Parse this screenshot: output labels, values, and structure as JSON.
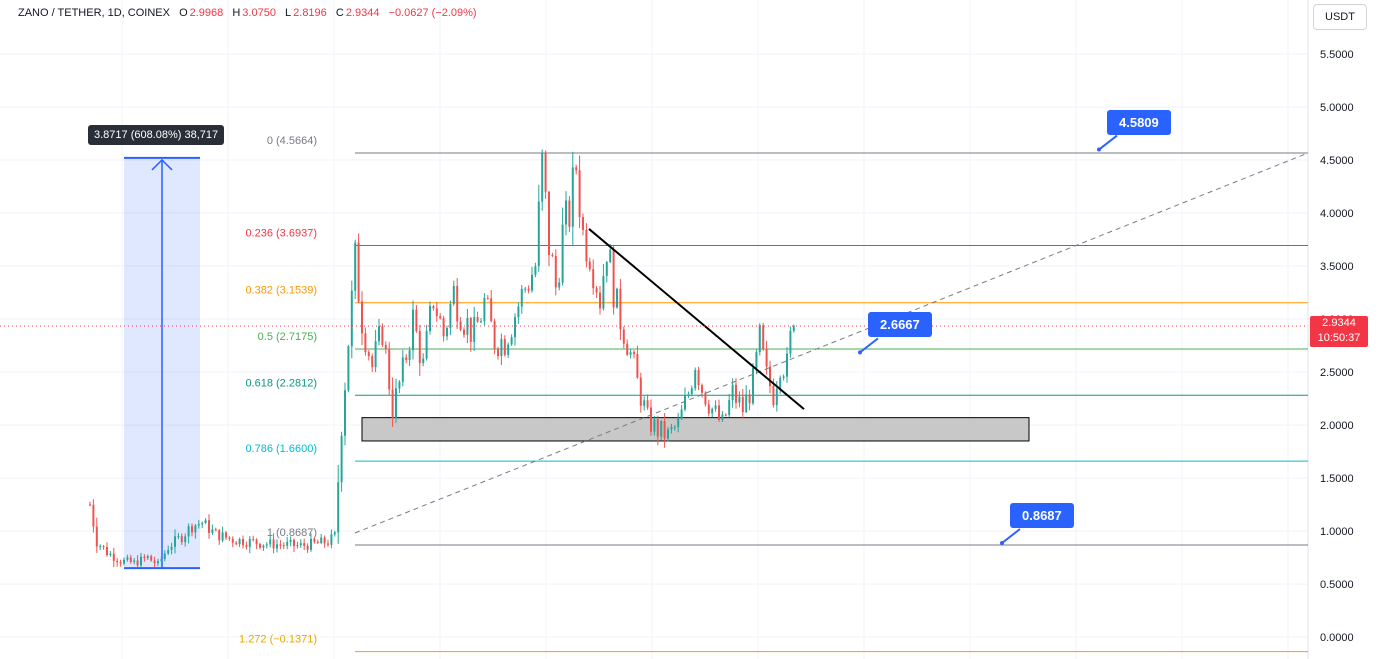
{
  "header": {
    "symbol": "ZANO / TETHER, 1D, COINEX",
    "open_label": "O",
    "open": "2.9968",
    "high_label": "H",
    "high": "3.0750",
    "low_label": "L",
    "low": "2.8196",
    "close_label": "C",
    "close": "2.9344",
    "change": "−0.0627 (−2.09%)"
  },
  "unit_button": "USDT",
  "price_tag": {
    "price": "2.9344",
    "countdown": "10:50:37"
  },
  "colors": {
    "up": "#26a69a",
    "down": "#ef5350",
    "bar": "#131722",
    "accent": "#2962ff",
    "fib_0": "#787b86",
    "fib_236": "#f23645",
    "fib_382": "#ff9800",
    "fib_5": "#4caf50",
    "fib_618": "#089981",
    "fib_786": "#00bcd4",
    "fib_1": "#787b86",
    "fib_1272": "#e5a700"
  },
  "measure": {
    "label": "3.8717 (608.08%) 38,717",
    "from": 0.65,
    "to": 4.52
  },
  "callouts": [
    {
      "label": "4.5809",
      "price": 4.58
    },
    {
      "label": "2.6667",
      "price": 2.6667
    },
    {
      "label": "0.8687",
      "price": 0.8687
    }
  ],
  "chart_data": {
    "type": "candlestick",
    "title": "ZANO / TETHER, 1D, COINEX",
    "y_axis": {
      "min": -0.15,
      "max": 5.75,
      "ticks": [
        "5.5000",
        "5.0000",
        "4.5000",
        "4.0000",
        "3.5000",
        "3.0000",
        "2.5000",
        "2.0000",
        "1.5000",
        "1.0000",
        "0.5000",
        "0.0000"
      ]
    },
    "current_price": 2.9344,
    "grid": true,
    "fib_levels": [
      {
        "label": "0 (4.5664)",
        "ratio": 0,
        "price": 4.5664,
        "color_key": "fib_0"
      },
      {
        "label": "0.236 (3.6937)",
        "ratio": 0.236,
        "price": 3.6937,
        "color_key": "fib_236"
      },
      {
        "label": "0.382 (3.1539)",
        "ratio": 0.382,
        "price": 3.1539,
        "color_key": "fib_382"
      },
      {
        "label": "0.5 (2.7175)",
        "ratio": 0.5,
        "price": 2.7175,
        "color_key": "fib_5"
      },
      {
        "label": "0.618 (2.2812)",
        "ratio": 0.618,
        "price": 2.2812,
        "color_key": "fib_618"
      },
      {
        "label": "0.786 (1.6600)",
        "ratio": 0.786,
        "price": 1.66,
        "color_key": "fib_786"
      },
      {
        "label": "1 (0.8687)",
        "ratio": 1,
        "price": 0.8687,
        "color_key": "fib_1"
      },
      {
        "label": "1.272 (−0.1371)",
        "ratio": 1.272,
        "price": -0.1371,
        "color_key": "fib_1272"
      }
    ],
    "support_zone": {
      "low": 1.85,
      "high": 2.07
    },
    "trendline": {
      "from": 3.85,
      "to": 2.15
    },
    "series_anchors": [
      [
        0,
        1.25
      ],
      [
        2,
        0.9
      ],
      [
        5,
        0.8
      ],
      [
        9,
        0.72
      ],
      [
        13,
        0.7
      ],
      [
        17,
        0.75
      ],
      [
        20,
        0.68
      ],
      [
        23,
        0.85
      ],
      [
        27,
        0.95
      ],
      [
        30,
        1.05
      ],
      [
        33,
        1.08
      ],
      [
        37,
        0.97
      ],
      [
        42,
        0.92
      ],
      [
        47,
        0.9
      ],
      [
        52,
        0.88
      ],
      [
        57,
        0.87
      ],
      [
        62,
        0.86
      ],
      [
        66,
        0.88
      ],
      [
        70,
        0.9
      ],
      [
        72,
        0.95
      ],
      [
        74,
        2.0
      ],
      [
        76,
        2.8
      ],
      [
        78,
        3.55
      ],
      [
        80,
        3.0
      ],
      [
        83,
        2.55
      ],
      [
        86,
        2.9
      ],
      [
        89,
        2.15
      ],
      [
        92,
        2.5
      ],
      [
        95,
        3.0
      ],
      [
        98,
        2.55
      ],
      [
        101,
        3.2
      ],
      [
        104,
        2.85
      ],
      [
        107,
        3.25
      ],
      [
        110,
        3.0
      ],
      [
        113,
        2.85
      ],
      [
        116,
        3.15
      ],
      [
        119,
        2.8
      ],
      [
        122,
        2.8
      ],
      [
        125,
        3.05
      ],
      [
        128,
        3.3
      ],
      [
        131,
        3.5
      ],
      [
        133,
        4.45
      ],
      [
        135,
        3.7
      ],
      [
        137,
        3.3
      ],
      [
        139,
        3.8
      ],
      [
        141,
        4.0
      ],
      [
        143,
        4.45
      ],
      [
        145,
        3.8
      ],
      [
        147,
        3.65
      ],
      [
        150,
        3.2
      ],
      [
        152,
        3.7
      ],
      [
        155,
        3.1
      ],
      [
        158,
        2.8
      ],
      [
        161,
        2.4
      ],
      [
        164,
        2.05
      ],
      [
        167,
        1.95
      ],
      [
        170,
        1.9
      ],
      [
        173,
        2.0
      ],
      [
        176,
        2.3
      ],
      [
        178,
        2.6
      ],
      [
        180,
        2.35
      ],
      [
        183,
        2.15
      ],
      [
        186,
        2.0
      ],
      [
        189,
        2.3
      ],
      [
        192,
        2.15
      ],
      [
        195,
        2.4
      ],
      [
        197,
        2.8
      ],
      [
        199,
        2.45
      ],
      [
        201,
        2.3
      ],
      [
        203,
        2.6
      ],
      [
        205,
        2.55
      ],
      [
        207,
        3.05
      ]
    ]
  }
}
